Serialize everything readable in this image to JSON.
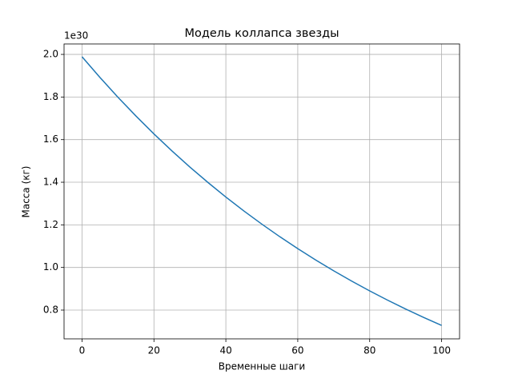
{
  "chart_data": {
    "type": "line",
    "title": "Модель коллапса звезды",
    "x_label": "Временные шаги",
    "y_label": "Масса (кг)",
    "y_offset_label": "1e30",
    "x": [
      0,
      5,
      10,
      15,
      20,
      25,
      30,
      35,
      40,
      45,
      50,
      55,
      60,
      65,
      70,
      75,
      80,
      85,
      90,
      95,
      100
    ],
    "series": [
      {
        "color": "#1f77b4",
        "values": [
          1.989,
          1.8915,
          1.7988,
          1.7107,
          1.6268,
          1.5471,
          1.4713,
          1.3992,
          1.3306,
          1.2654,
          1.2034,
          1.1444,
          1.0883,
          1.035,
          0.9842,
          0.936,
          0.8901,
          0.8465,
          0.805,
          0.7656,
          0.728
        ]
      }
    ],
    "xlim": [
      -5,
      105
    ],
    "xticks": [
      0,
      20,
      40,
      60,
      80,
      100
    ],
    "ylim": [
      0.665,
      2.049
    ],
    "yticks": [
      0.8,
      {
        "value": 1,
        "label": "1.0"
      },
      1.2,
      1.4,
      1.6,
      1.8,
      {
        "value": 2,
        "label": "2.0"
      }
    ],
    "grid": true
  }
}
